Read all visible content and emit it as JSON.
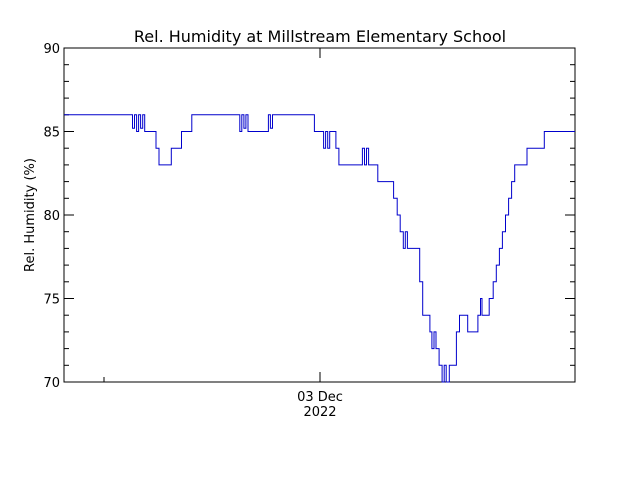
{
  "chart_data": {
    "type": "line",
    "title": "Rel. Humidity at Millstream Elementary School",
    "ylabel": "Rel. Humidity (%)",
    "xlabel": "",
    "ylim": [
      70,
      90
    ],
    "yticks": [
      70,
      75,
      80,
      85,
      90
    ],
    "x_tick_label": {
      "line1": "03 Dec",
      "line2": "2022"
    },
    "grid": false,
    "colors": {
      "series": "#0000cc",
      "axes": "#000000"
    },
    "x_units": "fraction of plotted time span",
    "series": [
      {
        "points": [
          [
            0.0,
            86
          ],
          [
            0.05,
            86
          ],
          [
            0.1,
            86
          ],
          [
            0.13,
            86
          ],
          [
            0.134,
            85.2
          ],
          [
            0.138,
            86
          ],
          [
            0.142,
            85
          ],
          [
            0.146,
            86
          ],
          [
            0.15,
            85.2
          ],
          [
            0.154,
            86
          ],
          [
            0.158,
            85
          ],
          [
            0.176,
            85
          ],
          [
            0.18,
            84
          ],
          [
            0.186,
            83
          ],
          [
            0.205,
            83
          ],
          [
            0.21,
            84
          ],
          [
            0.225,
            84
          ],
          [
            0.23,
            85
          ],
          [
            0.245,
            85
          ],
          [
            0.25,
            86
          ],
          [
            0.34,
            86
          ],
          [
            0.344,
            85
          ],
          [
            0.348,
            86
          ],
          [
            0.352,
            85.2
          ],
          [
            0.356,
            86
          ],
          [
            0.36,
            85
          ],
          [
            0.395,
            85
          ],
          [
            0.4,
            86
          ],
          [
            0.404,
            85.2
          ],
          [
            0.408,
            86
          ],
          [
            0.485,
            86
          ],
          [
            0.49,
            85
          ],
          [
            0.505,
            85
          ],
          [
            0.508,
            84
          ],
          [
            0.512,
            85
          ],
          [
            0.516,
            84
          ],
          [
            0.52,
            85
          ],
          [
            0.528,
            85
          ],
          [
            0.532,
            84
          ],
          [
            0.538,
            83
          ],
          [
            0.58,
            83
          ],
          [
            0.584,
            84
          ],
          [
            0.588,
            83
          ],
          [
            0.592,
            84
          ],
          [
            0.596,
            83
          ],
          [
            0.61,
            83
          ],
          [
            0.614,
            82
          ],
          [
            0.64,
            82
          ],
          [
            0.645,
            81
          ],
          [
            0.652,
            80
          ],
          [
            0.658,
            79
          ],
          [
            0.664,
            78
          ],
          [
            0.668,
            79
          ],
          [
            0.672,
            78
          ],
          [
            0.69,
            78
          ],
          [
            0.696,
            76
          ],
          [
            0.702,
            74
          ],
          [
            0.712,
            74
          ],
          [
            0.716,
            73
          ],
          [
            0.72,
            72
          ],
          [
            0.724,
            73
          ],
          [
            0.728,
            72
          ],
          [
            0.734,
            71
          ],
          [
            0.74,
            70
          ],
          [
            0.744,
            71
          ],
          [
            0.748,
            70
          ],
          [
            0.754,
            71
          ],
          [
            0.762,
            71
          ],
          [
            0.768,
            73
          ],
          [
            0.774,
            74
          ],
          [
            0.782,
            74
          ],
          [
            0.79,
            73
          ],
          [
            0.805,
            73
          ],
          [
            0.81,
            74
          ],
          [
            0.815,
            75
          ],
          [
            0.818,
            74
          ],
          [
            0.826,
            74
          ],
          [
            0.832,
            75
          ],
          [
            0.84,
            76
          ],
          [
            0.846,
            77
          ],
          [
            0.852,
            78
          ],
          [
            0.858,
            79
          ],
          [
            0.864,
            80
          ],
          [
            0.87,
            81
          ],
          [
            0.876,
            82
          ],
          [
            0.882,
            83
          ],
          [
            0.902,
            83
          ],
          [
            0.906,
            84
          ],
          [
            0.935,
            84
          ],
          [
            0.94,
            85
          ],
          [
            1.0,
            85
          ]
        ]
      }
    ]
  }
}
